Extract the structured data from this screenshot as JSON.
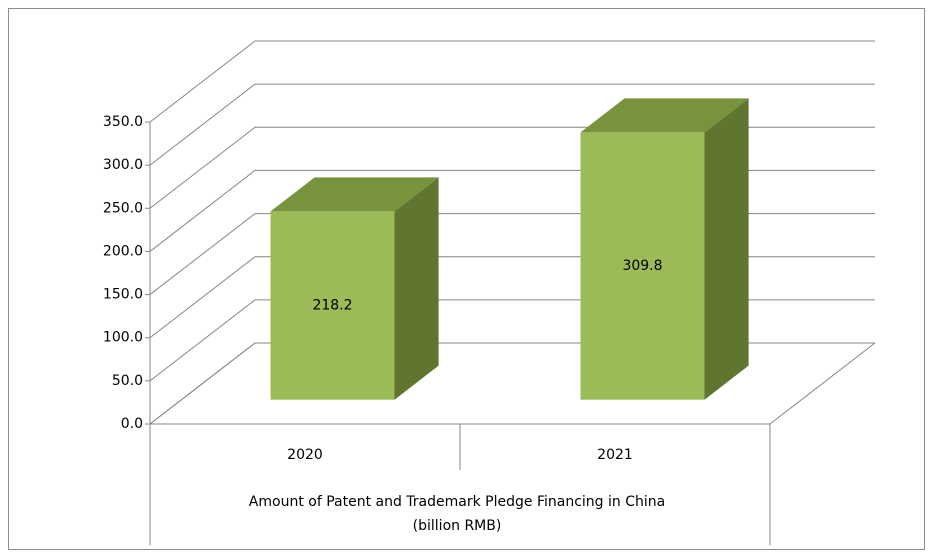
{
  "chart_data": {
    "type": "bar3d",
    "categories": [
      "2020",
      "2021"
    ],
    "values": [
      218.2,
      309.8
    ],
    "x_label": [
      "Amount of Patent and Trademark Pledge Financing in China",
      "(billion RMB)"
    ],
    "colors": {
      "front": "#9bbb59",
      "top": "#77933c",
      "side": "#5f7530"
    },
    "ylim": [
      0,
      350
    ],
    "yticks": [
      {
        "value": 0,
        "label": "0.0"
      },
      {
        "value": 50,
        "label": "50.0"
      },
      {
        "value": 100,
        "label": "100.0"
      },
      {
        "value": 150,
        "label": "150.0"
      },
      {
        "value": 200,
        "label": "200.0"
      },
      {
        "value": 250,
        "label": "250.0"
      },
      {
        "value": 300,
        "label": "300.0"
      },
      {
        "value": 350,
        "label": "350.0"
      }
    ],
    "grid": true
  }
}
